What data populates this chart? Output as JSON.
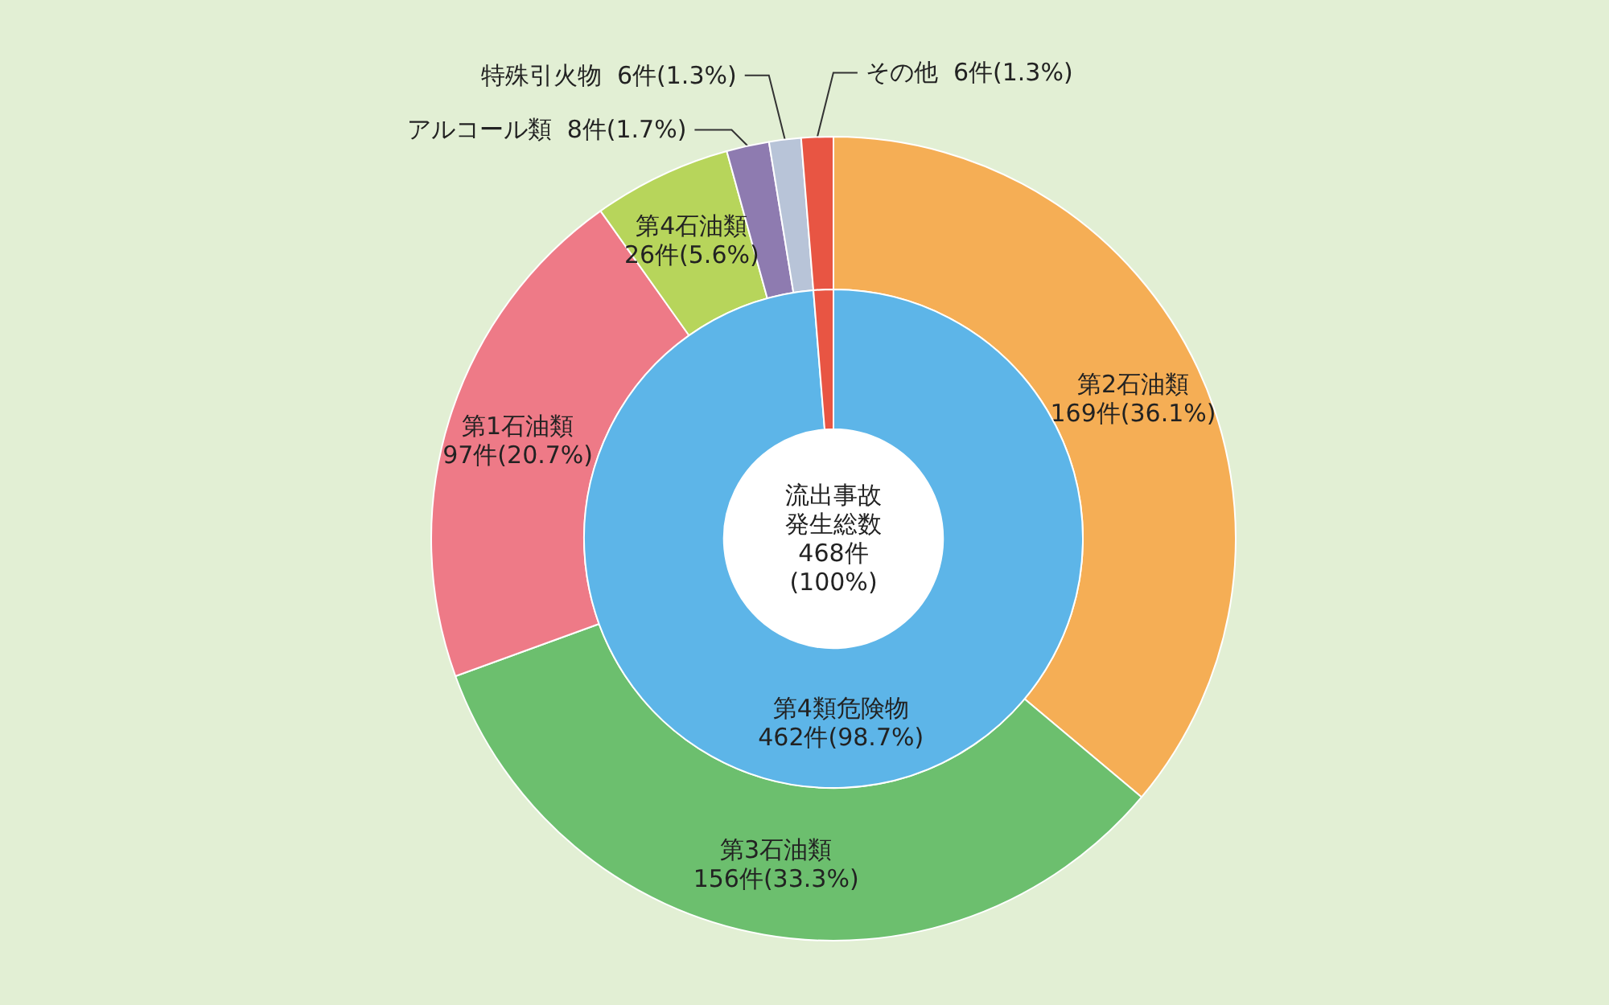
{
  "chart_data": [
    {
      "type": "donut",
      "categories": [
        "第2石油類",
        "第3石油類",
        "第1石油類",
        "第4石油類",
        "アルコール類",
        "特殊引火物",
        "その他"
      ],
      "values": [
        169,
        156,
        97,
        26,
        8,
        6,
        6
      ],
      "colors": [
        "#f5ae55",
        "#6cbf6e",
        "#ee7a87",
        "#b7d55b",
        "#8e7bb0",
        "#b8c4d8",
        "#e85543"
      ],
      "value_labels": [
        "169件(36.1%)",
        "156件(33.3%)",
        "97件(20.7%)",
        "26件(5.6%)",
        "8件(1.7%)",
        "6件(1.3%)",
        "6件(1.3%)"
      ],
      "legend": false
    },
    {
      "type": "donut",
      "categories": [
        "第4類危険物",
        null
      ],
      "values": [
        462,
        6
      ],
      "colors": [
        "#5db5e8",
        "#e85543"
      ],
      "value_labels": [
        "462件(98.7%)",
        null
      ],
      "annotations": [
        "流出事故発生総数",
        "468件",
        "(100%)"
      ],
      "legend": false
    }
  ]
}
